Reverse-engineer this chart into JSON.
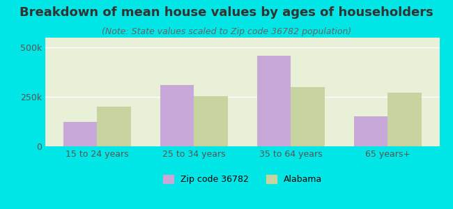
{
  "title": "Breakdown of mean house values by ages of householders",
  "subtitle": "(Note: State values scaled to Zip code 36782 population)",
  "categories": [
    "15 to 24 years",
    "25 to 34 years",
    "35 to 64 years",
    "65 years+"
  ],
  "zip_values": [
    125000,
    310000,
    460000,
    150000
  ],
  "state_values": [
    200000,
    255000,
    300000,
    270000
  ],
  "zip_color": "#c8a8d8",
  "state_color": "#c8d4a0",
  "background_outer": "#00e5e5",
  "background_plot": "#e8f0d8",
  "ylim": [
    0,
    550000
  ],
  "ytick_labels": [
    "0",
    "250k",
    "500k"
  ],
  "legend_zip": "Zip code 36782",
  "legend_state": "Alabama",
  "bar_width": 0.35,
  "title_fontsize": 13,
  "subtitle_fontsize": 9,
  "tick_fontsize": 9,
  "legend_fontsize": 9
}
